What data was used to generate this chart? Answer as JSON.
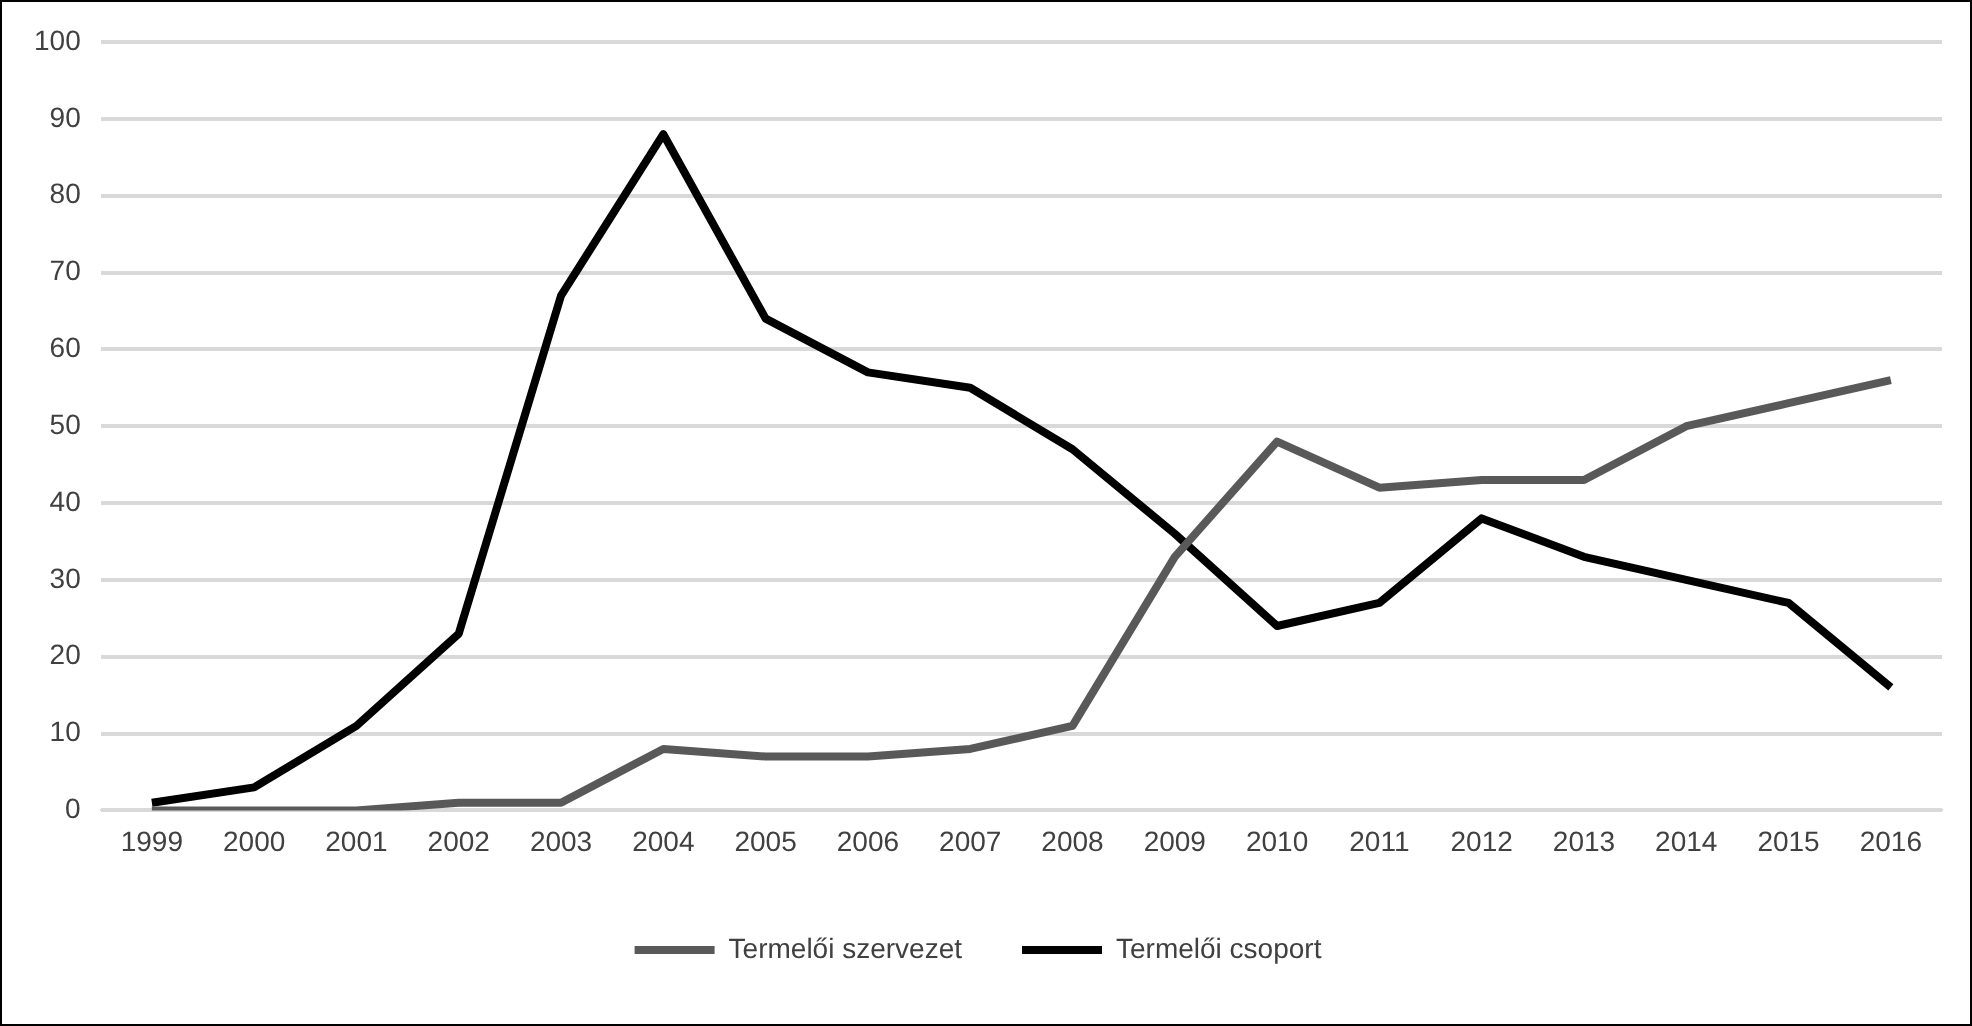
{
  "chart_data": {
    "type": "line",
    "categories": [
      "1999",
      "2000",
      "2001",
      "2002",
      "2003",
      "2004",
      "2005",
      "2006",
      "2007",
      "2008",
      "2009",
      "2010",
      "2011",
      "2012",
      "2013",
      "2014",
      "2015",
      "2016"
    ],
    "series": [
      {
        "name": "Termelői szervezet",
        "color": "#595959",
        "values": [
          0,
          0,
          0,
          1,
          1,
          8,
          7,
          7,
          8,
          11,
          33,
          48,
          42,
          43,
          43,
          50,
          53,
          56
        ]
      },
      {
        "name": "Termelői csoport",
        "color": "#000000",
        "values": [
          1,
          3,
          11,
          23,
          67,
          88,
          64,
          57,
          55,
          47,
          36,
          24,
          27,
          38,
          33,
          30,
          27,
          16
        ]
      }
    ],
    "ylim": [
      0,
      100
    ],
    "yticks": [
      0,
      10,
      20,
      30,
      40,
      50,
      60,
      70,
      80,
      90,
      100
    ],
    "grid": "y",
    "legend": "bottom",
    "marker": "none",
    "line_style": "solid"
  }
}
